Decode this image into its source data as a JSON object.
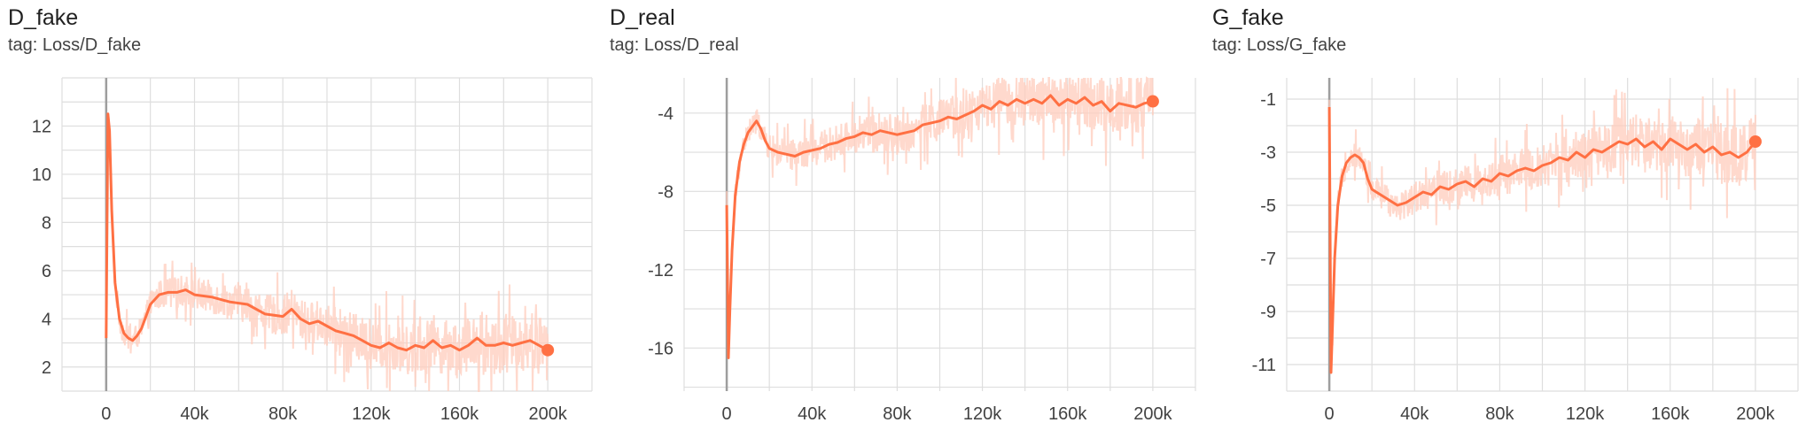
{
  "chart_data": [
    {
      "type": "line",
      "title": "D_fake",
      "subtitle": "tag: Loss/D_fake",
      "xlabel": "",
      "ylabel": "",
      "xlim": [
        -20000,
        220000
      ],
      "ylim": [
        1.0,
        14.0
      ],
      "x_ticks": [
        0,
        40000,
        80000,
        120000,
        160000,
        200000
      ],
      "x_tick_labels": [
        "0",
        "40k",
        "80k",
        "120k",
        "160k",
        "200k"
      ],
      "y_ticks": [
        2,
        4,
        6,
        8,
        10,
        12
      ],
      "y_tick_labels": [
        "2",
        "4",
        "6",
        "8",
        "10",
        "12"
      ],
      "grid": true,
      "colors": {
        "smoothed": "#ff7043",
        "raw": "#ffccbc"
      },
      "series": [
        {
          "x": [
            0,
            800,
            1500,
            2500,
            4000,
            6000,
            8000,
            10000,
            12000,
            14000,
            16000,
            18000,
            20000,
            24000,
            28000,
            32000,
            36000,
            40000,
            48000,
            56000,
            64000,
            72000,
            80000,
            84000,
            88000,
            92000,
            96000,
            100000,
            104000,
            108000,
            112000,
            116000,
            120000,
            124000,
            128000,
            132000,
            136000,
            140000,
            144000,
            148000,
            152000,
            156000,
            160000,
            164000,
            168000,
            172000,
            176000,
            180000,
            184000,
            188000,
            192000,
            196000,
            200000
          ],
          "values": [
            3.2,
            12.5,
            11.8,
            8.5,
            5.5,
            4.0,
            3.4,
            3.2,
            3.1,
            3.3,
            3.6,
            4.1,
            4.6,
            5.0,
            5.1,
            5.1,
            5.2,
            5.0,
            4.9,
            4.7,
            4.6,
            4.2,
            4.1,
            4.4,
            4.0,
            3.8,
            3.9,
            3.7,
            3.5,
            3.4,
            3.3,
            3.1,
            2.9,
            2.8,
            3.0,
            2.8,
            2.7,
            2.9,
            2.8,
            3.1,
            2.8,
            2.9,
            2.7,
            2.9,
            3.2,
            2.9,
            2.9,
            3.0,
            2.9,
            3.0,
            3.1,
            2.9,
            2.7
          ]
        }
      ]
    },
    {
      "type": "line",
      "title": "D_real",
      "subtitle": "tag: Loss/D_real",
      "xlabel": "",
      "ylabel": "",
      "xlim": [
        -20000,
        220000
      ],
      "ylim": [
        -18.2,
        -2.2
      ],
      "x_ticks": [
        0,
        40000,
        80000,
        120000,
        160000,
        200000
      ],
      "x_tick_labels": [
        "0",
        "40k",
        "80k",
        "120k",
        "160k",
        "200k"
      ],
      "y_ticks": [
        -16,
        -12,
        -8,
        -4
      ],
      "y_tick_labels": [
        "-16",
        "-12",
        "-8",
        "-4"
      ],
      "grid": true,
      "colors": {
        "smoothed": "#ff7043",
        "raw": "#ffccbc"
      },
      "series": [
        {
          "x": [
            0,
            800,
            1500,
            2500,
            4000,
            6000,
            8000,
            10000,
            12000,
            14000,
            16000,
            18000,
            20000,
            24000,
            28000,
            32000,
            36000,
            40000,
            44000,
            48000,
            52000,
            56000,
            60000,
            64000,
            68000,
            72000,
            76000,
            80000,
            84000,
            88000,
            92000,
            96000,
            100000,
            104000,
            108000,
            112000,
            116000,
            120000,
            124000,
            128000,
            132000,
            136000,
            140000,
            144000,
            148000,
            152000,
            156000,
            160000,
            164000,
            168000,
            172000,
            176000,
            180000,
            184000,
            188000,
            192000,
            196000,
            200000
          ],
          "values": [
            -8.7,
            -16.5,
            -14.0,
            -11.0,
            -8.2,
            -6.5,
            -5.6,
            -5.0,
            -4.7,
            -4.4,
            -4.8,
            -5.4,
            -5.8,
            -6.0,
            -6.1,
            -6.2,
            -6.0,
            -5.9,
            -5.8,
            -5.6,
            -5.5,
            -5.3,
            -5.2,
            -5.0,
            -5.1,
            -4.9,
            -5.0,
            -5.1,
            -5.0,
            -4.9,
            -4.6,
            -4.5,
            -4.4,
            -4.2,
            -4.3,
            -4.1,
            -3.9,
            -3.6,
            -3.8,
            -3.4,
            -3.6,
            -3.3,
            -3.5,
            -3.3,
            -3.5,
            -3.1,
            -3.6,
            -3.3,
            -3.5,
            -3.2,
            -3.6,
            -3.4,
            -3.9,
            -3.5,
            -3.6,
            -3.7,
            -3.5,
            -3.4
          ]
        }
      ]
    },
    {
      "type": "line",
      "title": "G_fake",
      "subtitle": "tag: Loss/G_fake",
      "xlabel": "",
      "ylabel": "",
      "xlim": [
        -20000,
        220000
      ],
      "ylim": [
        -12.0,
        -0.2
      ],
      "x_ticks": [
        0,
        40000,
        80000,
        120000,
        160000,
        200000
      ],
      "x_tick_labels": [
        "0",
        "40k",
        "80k",
        "120k",
        "160k",
        "200k"
      ],
      "y_ticks": [
        -11,
        -9,
        -7,
        -5,
        -3,
        -1
      ],
      "y_tick_labels": [
        "-11",
        "-9",
        "-7",
        "-5",
        "-3",
        "-1"
      ],
      "grid": true,
      "colors": {
        "smoothed": "#ff7043",
        "raw": "#ffccbc"
      },
      "series": [
        {
          "x": [
            0,
            800,
            1500,
            2500,
            4000,
            6000,
            8000,
            10000,
            12000,
            14000,
            16000,
            18000,
            20000,
            24000,
            28000,
            32000,
            36000,
            40000,
            44000,
            48000,
            52000,
            56000,
            60000,
            64000,
            68000,
            72000,
            76000,
            80000,
            84000,
            88000,
            92000,
            96000,
            100000,
            104000,
            108000,
            112000,
            116000,
            120000,
            124000,
            128000,
            132000,
            136000,
            140000,
            144000,
            148000,
            152000,
            156000,
            160000,
            164000,
            168000,
            172000,
            176000,
            180000,
            184000,
            188000,
            192000,
            196000,
            200000
          ],
          "values": [
            -1.3,
            -11.3,
            -9.5,
            -7.0,
            -5.0,
            -3.9,
            -3.4,
            -3.2,
            -3.1,
            -3.2,
            -3.4,
            -4.0,
            -4.4,
            -4.6,
            -4.8,
            -5.0,
            -4.9,
            -4.7,
            -4.5,
            -4.6,
            -4.3,
            -4.4,
            -4.2,
            -4.1,
            -4.3,
            -4.0,
            -4.1,
            -3.8,
            -3.9,
            -3.7,
            -3.6,
            -3.7,
            -3.5,
            -3.4,
            -3.2,
            -3.3,
            -3.0,
            -3.2,
            -2.9,
            -3.0,
            -2.8,
            -2.6,
            -2.7,
            -2.5,
            -2.8,
            -2.6,
            -2.9,
            -2.5,
            -2.7,
            -2.9,
            -2.7,
            -3.0,
            -2.8,
            -3.1,
            -3.0,
            -3.2,
            -3.0,
            -2.6
          ]
        }
      ]
    }
  ]
}
